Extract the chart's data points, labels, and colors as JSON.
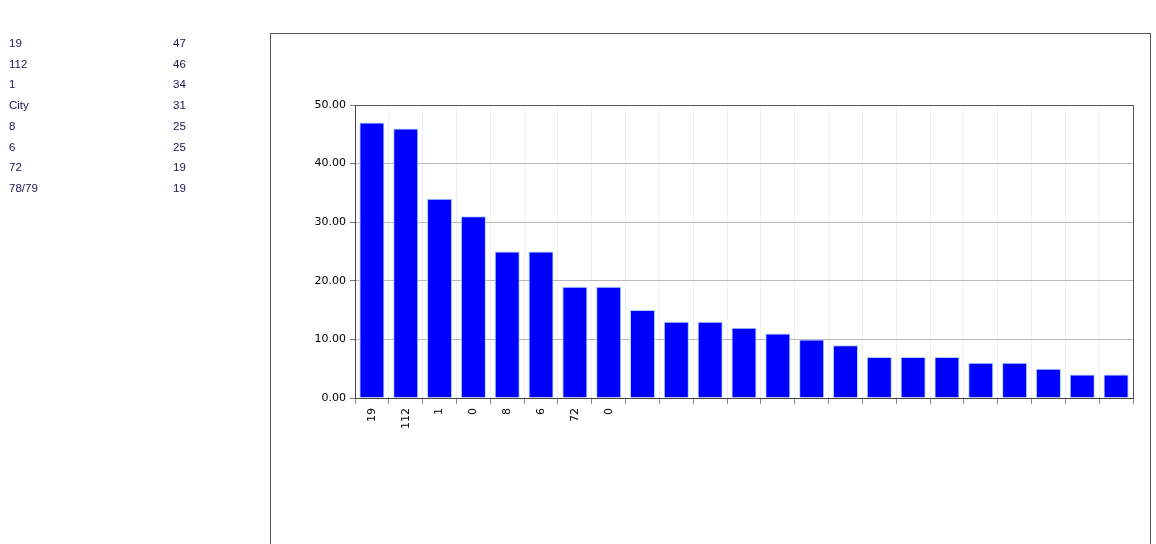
{
  "chart_data": [
    {
      "type": "other",
      "annotations": [
        "19",
        "47",
        "112",
        "46",
        "1",
        "34",
        "City",
        "31",
        "8",
        "25",
        "6",
        "25",
        "72",
        "19",
        "78/79",
        "19"
      ]
    },
    {
      "type": "bar",
      "categories": [
        "19",
        "112",
        "1",
        "0",
        "8",
        "6",
        "72",
        "0",
        null,
        null,
        null,
        null,
        null,
        null,
        null,
        null,
        null,
        null,
        null,
        null,
        null,
        null,
        null
      ],
      "values": [
        47,
        46,
        34,
        31,
        25,
        25,
        19,
        19,
        15,
        13,
        13,
        12,
        11,
        10,
        9,
        7,
        7,
        7,
        6,
        6,
        5,
        4,
        4
      ],
      "color": "#0000ff",
      "ylim": [
        0,
        50
      ],
      "yticks": [
        {
          "value": 0,
          "label": "0.00"
        },
        {
          "value": 10,
          "label": "10.00"
        },
        {
          "value": 20,
          "label": "20.00"
        },
        {
          "value": 30,
          "label": "30.00"
        },
        {
          "value": 40,
          "label": "40.00"
        },
        {
          "value": 50,
          "label": "50.00"
        }
      ],
      "grid": true
    }
  ]
}
